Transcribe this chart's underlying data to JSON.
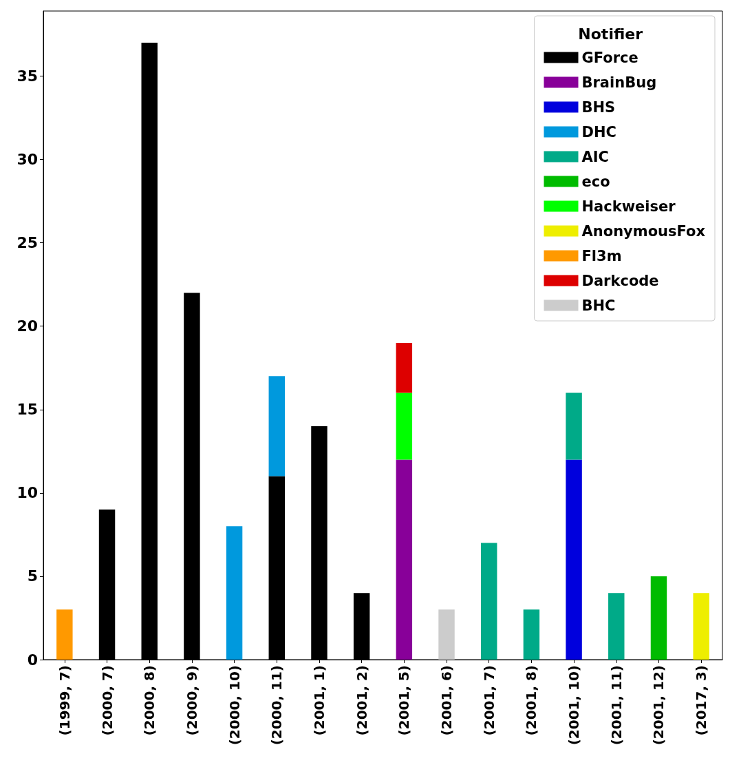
{
  "chart_data": {
    "type": "bar",
    "stacked": true,
    "legend_title": "Notifier",
    "categories": [
      "(1999, 7)",
      "(2000, 7)",
      "(2000, 8)",
      "(2000, 9)",
      "(2000, 10)",
      "(2000, 11)",
      "(2001, 1)",
      "(2001, 2)",
      "(2001, 5)",
      "(2001, 6)",
      "(2001, 7)",
      "(2001, 8)",
      "(2001, 10)",
      "(2001, 11)",
      "(2001, 12)",
      "(2017, 3)"
    ],
    "series": [
      {
        "name": "GForce",
        "color": "#000000",
        "values": [
          null,
          9,
          37,
          22,
          null,
          11,
          14,
          4,
          null,
          null,
          null,
          null,
          null,
          null,
          null,
          null
        ]
      },
      {
        "name": "BrainBug",
        "color": "#880099",
        "values": [
          null,
          null,
          null,
          null,
          null,
          null,
          null,
          null,
          12,
          null,
          null,
          null,
          null,
          null,
          null,
          null
        ]
      },
      {
        "name": "BHS",
        "color": "#0000dd",
        "values": [
          null,
          null,
          null,
          null,
          null,
          null,
          null,
          null,
          null,
          null,
          null,
          null,
          12,
          null,
          null,
          null
        ]
      },
      {
        "name": "DHC",
        "color": "#0099dd",
        "values": [
          null,
          null,
          null,
          null,
          8,
          6,
          null,
          null,
          null,
          null,
          null,
          null,
          null,
          null,
          null,
          null
        ]
      },
      {
        "name": "AIC",
        "color": "#00aa88",
        "values": [
          null,
          null,
          null,
          null,
          null,
          null,
          null,
          null,
          null,
          null,
          7,
          3,
          4,
          4,
          null,
          null
        ]
      },
      {
        "name": "eco",
        "color": "#00bb00",
        "values": [
          null,
          null,
          null,
          null,
          null,
          null,
          null,
          null,
          null,
          null,
          null,
          null,
          null,
          null,
          5,
          null
        ]
      },
      {
        "name": "Hackweiser",
        "color": "#00ff00",
        "values": [
          null,
          null,
          null,
          null,
          null,
          null,
          null,
          null,
          4,
          null,
          null,
          null,
          null,
          null,
          null,
          null
        ]
      },
      {
        "name": "AnonymousFox",
        "color": "#eeee00",
        "values": [
          null,
          null,
          null,
          null,
          null,
          null,
          null,
          null,
          null,
          null,
          null,
          null,
          null,
          null,
          null,
          4
        ]
      },
      {
        "name": "Fl3m",
        "color": "#ff9900",
        "values": [
          3,
          null,
          null,
          null,
          null,
          null,
          null,
          null,
          null,
          null,
          null,
          null,
          null,
          null,
          null,
          null
        ]
      },
      {
        "name": "Darkcode",
        "color": "#dd0000",
        "values": [
          null,
          null,
          null,
          null,
          null,
          null,
          null,
          null,
          3,
          null,
          null,
          null,
          null,
          null,
          null,
          null
        ]
      },
      {
        "name": "BHC",
        "color": "#cccccc",
        "values": [
          null,
          null,
          null,
          null,
          null,
          null,
          null,
          null,
          null,
          3,
          null,
          null,
          null,
          null,
          null,
          null
        ]
      }
    ],
    "ylim": [
      0,
      38.9
    ],
    "yticks": [
      0,
      5,
      10,
      15,
      20,
      25,
      30,
      35
    ],
    "grid": false,
    "legend": "top right"
  }
}
